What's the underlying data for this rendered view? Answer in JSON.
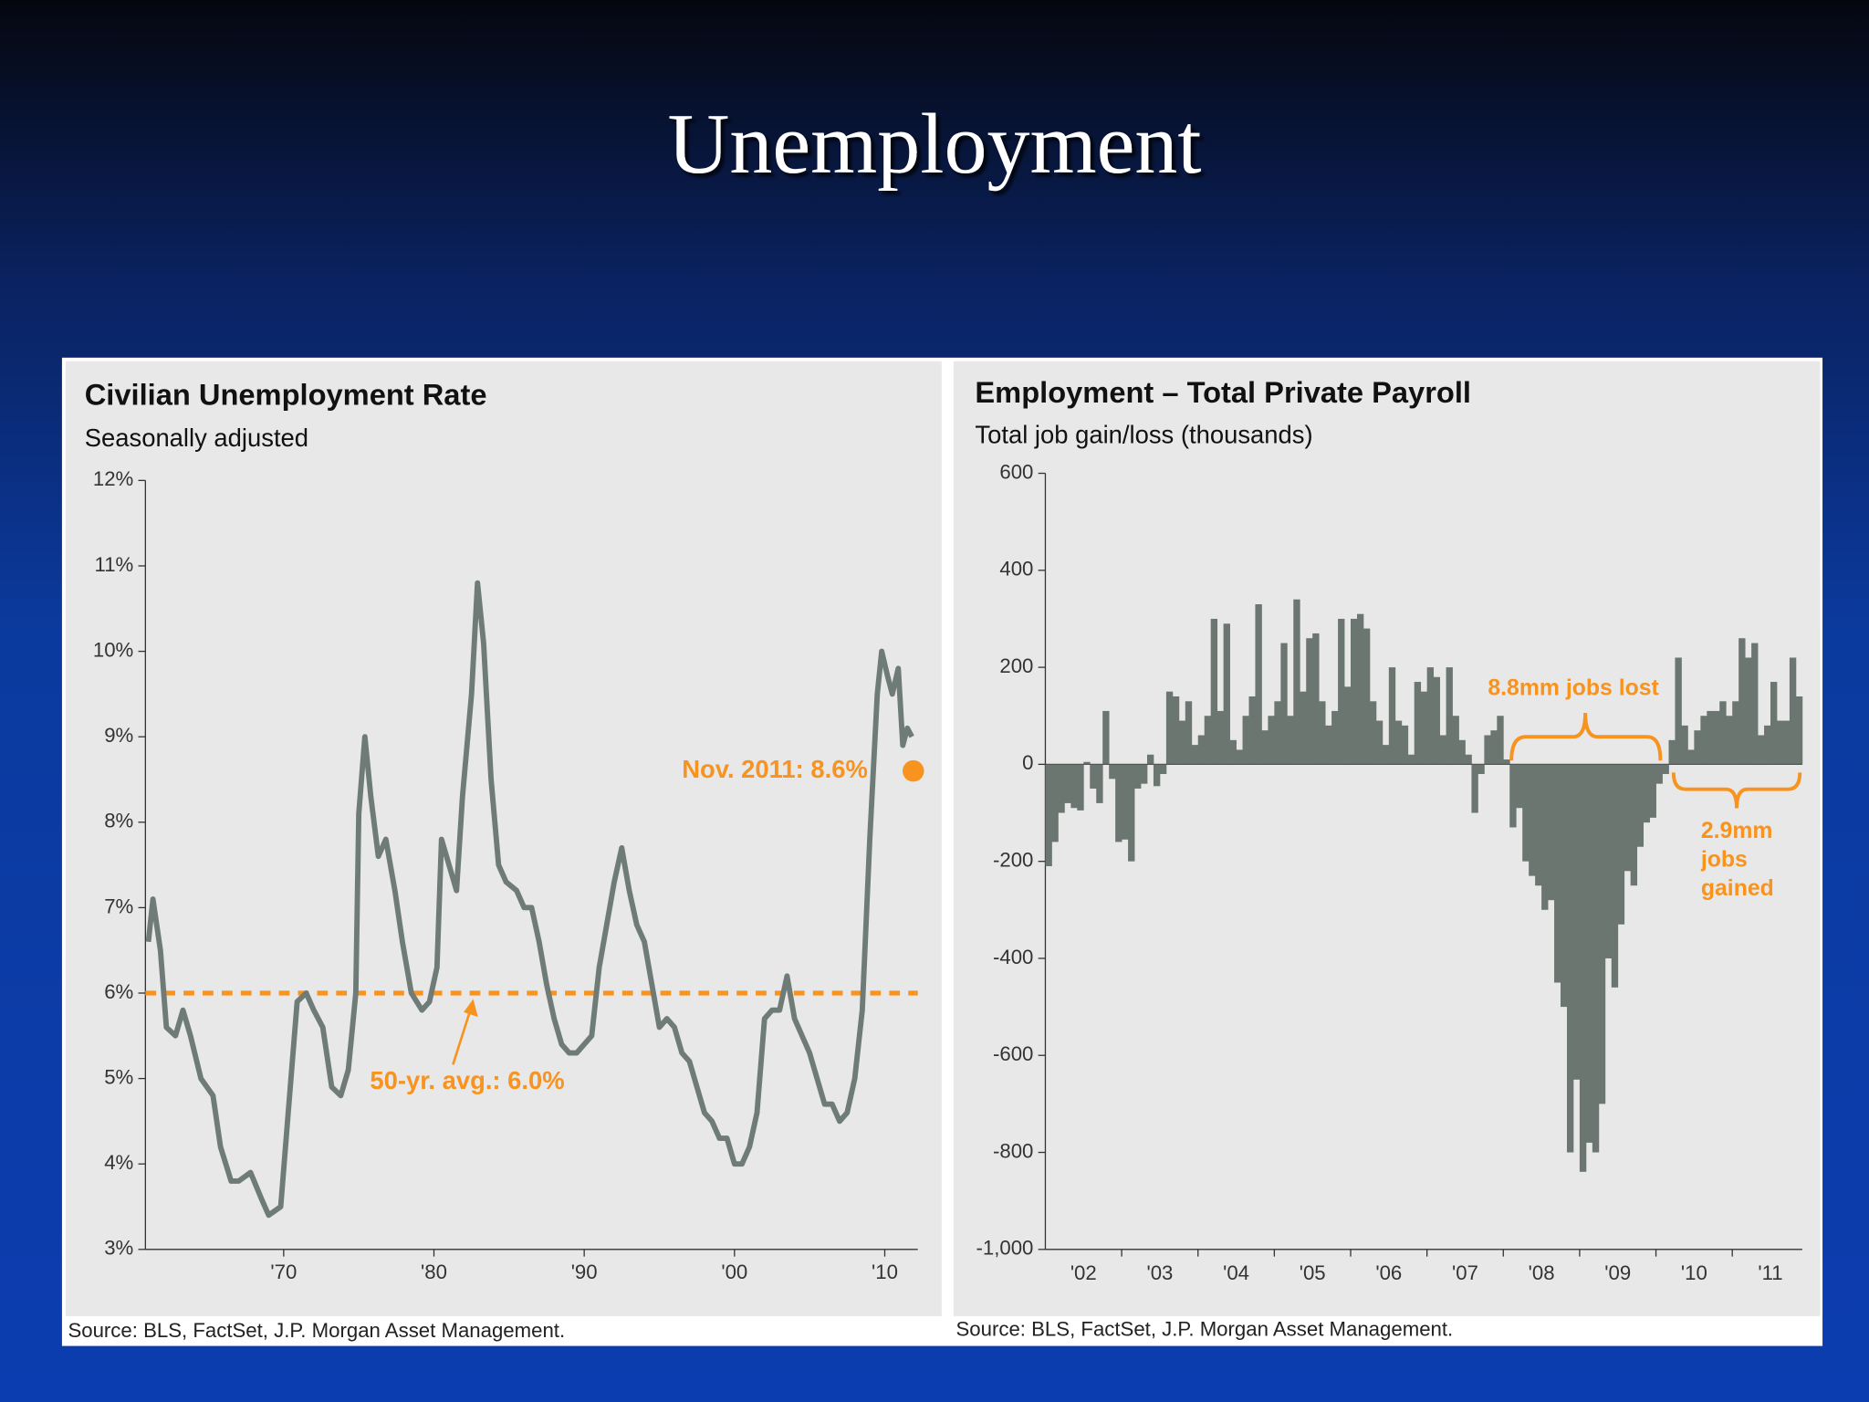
{
  "title": "Unemployment",
  "chart_data": [
    {
      "type": "line",
      "title": "Civilian Unemployment Rate",
      "subtitle": "Seasonally adjusted",
      "source": "Source: BLS, FactSet, J.P. Morgan Asset Management.",
      "color": "#6f7b76",
      "x": [
        1961.0,
        1961.3,
        1961.8,
        1962.2,
        1962.8,
        1963.3,
        1963.8,
        1964.5,
        1965.3,
        1965.8,
        1966.5,
        1967.0,
        1967.8,
        1968.5,
        1969.0,
        1969.8,
        1970.3,
        1970.9,
        1971.5,
        1972.0,
        1972.6,
        1973.2,
        1973.8,
        1974.3,
        1974.8,
        1975.0,
        1975.4,
        1975.8,
        1976.3,
        1976.8,
        1977.4,
        1977.9,
        1978.5,
        1979.2,
        1979.7,
        1980.2,
        1980.5,
        1981.0,
        1981.5,
        1981.9,
        1982.5,
        1982.9,
        1983.3,
        1983.8,
        1984.3,
        1984.8,
        1985.5,
        1986.0,
        1986.5,
        1987.0,
        1987.5,
        1988.0,
        1988.5,
        1989.0,
        1989.5,
        1990.0,
        1990.5,
        1991.0,
        1991.5,
        1992.0,
        1992.5,
        1993.0,
        1993.5,
        1994.0,
        1994.5,
        1995.0,
        1995.5,
        1996.0,
        1996.5,
        1997.0,
        1997.5,
        1998.0,
        1998.5,
        1999.0,
        1999.5,
        2000.0,
        2000.5,
        2001.0,
        2001.5,
        2002.0,
        2002.5,
        2003.0,
        2003.5,
        2004.0,
        2004.5,
        2005.0,
        2005.5,
        2006.0,
        2006.5,
        2007.0,
        2007.5,
        2008.0,
        2008.5,
        2009.0,
        2009.5,
        2009.8,
        2010.2,
        2010.5,
        2010.9,
        2011.2,
        2011.5,
        2011.8
      ],
      "values": [
        6.6,
        7.1,
        6.5,
        5.6,
        5.5,
        5.8,
        5.5,
        5.0,
        4.8,
        4.2,
        3.8,
        3.8,
        3.9,
        3.6,
        3.4,
        3.5,
        4.6,
        5.9,
        6.0,
        5.8,
        5.6,
        4.9,
        4.8,
        5.1,
        6.0,
        8.1,
        9.0,
        8.3,
        7.6,
        7.8,
        7.2,
        6.6,
        6.0,
        5.8,
        5.9,
        6.3,
        7.8,
        7.5,
        7.2,
        8.3,
        9.5,
        10.8,
        10.1,
        8.5,
        7.5,
        7.3,
        7.2,
        7.0,
        7.0,
        6.6,
        6.1,
        5.7,
        5.4,
        5.3,
        5.3,
        5.4,
        5.5,
        6.3,
        6.8,
        7.3,
        7.7,
        7.2,
        6.8,
        6.6,
        6.1,
        5.6,
        5.7,
        5.6,
        5.3,
        5.2,
        4.9,
        4.6,
        4.5,
        4.3,
        4.3,
        4.0,
        4.0,
        4.2,
        4.6,
        5.7,
        5.8,
        5.8,
        6.2,
        5.7,
        5.5,
        5.3,
        5.0,
        4.7,
        4.7,
        4.5,
        4.6,
        5.0,
        5.8,
        7.8,
        9.5,
        10.0,
        9.7,
        9.5,
        9.8,
        8.9,
        9.1,
        9.0
      ],
      "xlim": [
        1960.8,
        2012.2
      ],
      "xticks": [
        {
          "value": 1970,
          "label": "'70"
        },
        {
          "value": 1980,
          "label": "'80"
        },
        {
          "value": 1990,
          "label": "'90"
        },
        {
          "value": 2000,
          "label": "'00"
        },
        {
          "value": 2010,
          "label": "'10"
        }
      ],
      "ylim": [
        3,
        12
      ],
      "yticks": [
        {
          "value": 3,
          "label": "3%"
        },
        {
          "value": 4,
          "label": "4%"
        },
        {
          "value": 5,
          "label": "5%"
        },
        {
          "value": 6,
          "label": "6%"
        },
        {
          "value": 7,
          "label": "7%"
        },
        {
          "value": 8,
          "label": "8%"
        },
        {
          "value": 9,
          "label": "9%"
        },
        {
          "value": 10,
          "label": "10%"
        },
        {
          "value": 11,
          "label": "11%"
        },
        {
          "value": 12,
          "label": "12%"
        }
      ],
      "reference": {
        "value": 6.0,
        "label": "50-yr. avg.: 6.0%",
        "color": "#f7931e"
      },
      "highlight": {
        "x": 2011.9,
        "value": 8.6,
        "label": "Nov. 2011: 8.6%",
        "color": "#f7931e"
      }
    },
    {
      "type": "bar",
      "title": "Employment – Total Private Payroll",
      "subtitle": "Total job gain/loss (thousands)",
      "source": "Source: BLS, FactSet, J.P. Morgan Asset Management.",
      "color": "#6b7671",
      "categories": [
        null,
        null,
        null,
        null,
        null,
        null,
        "'02",
        null,
        null,
        null,
        null,
        null,
        null,
        null,
        null,
        null,
        null,
        null,
        "'03",
        null,
        null,
        null,
        null,
        null,
        null,
        null,
        null,
        null,
        null,
        null,
        "'04",
        null,
        null,
        null,
        null,
        null,
        null,
        null,
        null,
        null,
        null,
        null,
        "'05",
        null,
        null,
        null,
        null,
        null,
        null,
        null,
        null,
        null,
        null,
        null,
        "'06",
        null,
        null,
        null,
        null,
        null,
        null,
        null,
        null,
        null,
        null,
        null,
        "'07",
        null,
        null,
        null,
        null,
        null,
        null,
        null,
        null,
        null,
        null,
        null,
        "'08",
        null,
        null,
        null,
        null,
        null,
        null,
        null,
        null,
        null,
        null,
        null,
        "'09",
        null,
        null,
        null,
        null,
        null,
        null,
        null,
        null,
        null,
        null,
        null,
        "'10",
        null,
        null,
        null,
        null,
        null,
        null,
        null,
        null,
        null,
        null,
        null,
        "'11",
        null,
        null,
        null,
        null
      ],
      "values": [
        -210,
        -160,
        -100,
        -80,
        -90,
        -95,
        5,
        -50,
        -80,
        110,
        -30,
        -160,
        -155,
        -200,
        -50,
        -40,
        20,
        -45,
        -20,
        150,
        140,
        90,
        130,
        40,
        60,
        100,
        300,
        110,
        290,
        50,
        30,
        100,
        140,
        330,
        70,
        100,
        130,
        250,
        100,
        340,
        150,
        260,
        270,
        130,
        80,
        110,
        300,
        160,
        300,
        310,
        280,
        130,
        90,
        40,
        200,
        90,
        80,
        20,
        170,
        150,
        200,
        180,
        60,
        200,
        100,
        50,
        20,
        -100,
        -20,
        60,
        70,
        100,
        10,
        -130,
        -90,
        -200,
        -230,
        -250,
        -300,
        -280,
        -450,
        -500,
        -800,
        -650,
        -840,
        -780,
        -800,
        -700,
        -400,
        -460,
        -330,
        -220,
        -250,
        -170,
        -120,
        -110,
        -40,
        -20,
        50,
        220,
        80,
        30,
        70,
        100,
        110,
        110,
        130,
        100,
        130,
        260,
        220,
        250,
        60,
        80,
        170,
        90,
        90,
        220,
        140
      ],
      "ylim": [
        -1000,
        600
      ],
      "yticks": [
        {
          "value": -1000,
          "label": "-1,000"
        },
        -800,
        -600,
        -400,
        -200,
        0,
        200,
        400,
        600
      ],
      "annotations": [
        "8.8mm jobs lost",
        "2.9mm jobs gained"
      ],
      "annotation_color": "#f7931e"
    }
  ]
}
